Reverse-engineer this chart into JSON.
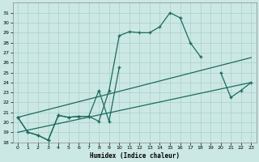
{
  "xlabel": "Humidex (Indice chaleur)",
  "bg_color": "#cce8e4",
  "line_color": "#1a6b5e",
  "grid_color": "#aacfcc",
  "xlim": [
    -0.5,
    23.5
  ],
  "ylim": [
    18,
    32
  ],
  "xticks": [
    0,
    1,
    2,
    3,
    4,
    5,
    6,
    7,
    8,
    9,
    10,
    11,
    12,
    13,
    14,
    15,
    16,
    17,
    18,
    19,
    20,
    21,
    22,
    23
  ],
  "yticks": [
    18,
    19,
    20,
    21,
    22,
    23,
    24,
    25,
    26,
    27,
    28,
    29,
    30,
    31
  ],
  "series1_x": [
    0,
    1,
    2,
    3,
    4,
    5,
    6,
    7,
    8,
    9,
    10,
    11,
    12,
    13,
    14,
    15,
    16,
    17,
    18
  ],
  "series1_y": [
    20.5,
    19.0,
    18.7,
    18.2,
    20.7,
    20.5,
    20.6,
    20.6,
    20.1,
    23.2,
    28.7,
    29.1,
    29.0,
    29.0,
    29.6,
    31.0,
    30.5,
    28.0,
    26.6
  ],
  "series2_x": [
    0,
    1,
    2,
    3,
    4,
    5,
    6,
    7,
    8,
    9,
    10,
    20,
    21,
    22,
    23
  ],
  "series2_y": [
    20.5,
    19.0,
    18.7,
    18.2,
    20.7,
    20.5,
    20.6,
    20.6,
    23.2,
    20.1,
    25.5,
    25.0,
    22.5,
    23.2,
    24.0
  ],
  "series3_x": [
    0,
    23
  ],
  "series3_y": [
    20.5,
    26.5
  ],
  "series4_x": [
    0,
    23
  ],
  "series4_y": [
    19.0,
    24.0
  ]
}
